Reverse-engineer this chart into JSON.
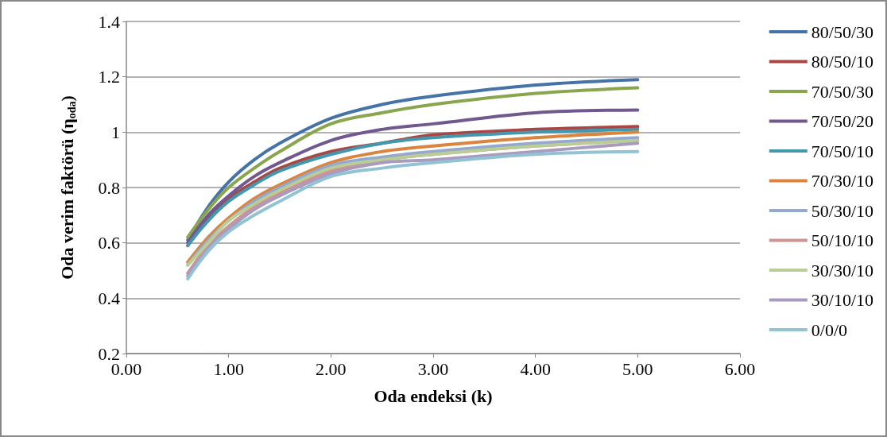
{
  "chart_data": {
    "type": "line",
    "xlabel": "Oda endeksi (k)",
    "ylabel": "Oda verim faktörü (η$_{oda}$)",
    "x": [
      0.6,
      0.8,
      1,
      1.25,
      1.5,
      2,
      2.5,
      3,
      4,
      5
    ],
    "series": [
      {
        "name": "80/50/30",
        "color": "#4572a7",
        "values": [
          0.61,
          0.73,
          0.82,
          0.9,
          0.96,
          1.05,
          1.1,
          1.13,
          1.17,
          1.19
        ]
      },
      {
        "name": "80/50/10",
        "color": "#aa4643",
        "values": [
          0.59,
          0.69,
          0.76,
          0.82,
          0.87,
          0.93,
          0.96,
          0.99,
          1.01,
          1.02
        ]
      },
      {
        "name": "70/50/30",
        "color": "#89a54e",
        "values": [
          0.62,
          0.72,
          0.8,
          0.87,
          0.93,
          1.03,
          1.07,
          1.1,
          1.14,
          1.16
        ]
      },
      {
        "name": "70/50/20",
        "color": "#71588f",
        "values": [
          0.6,
          0.7,
          0.77,
          0.84,
          0.89,
          0.97,
          1.01,
          1.03,
          1.07,
          1.08
        ]
      },
      {
        "name": "70/50/10",
        "color": "#4198af",
        "values": [
          0.59,
          0.68,
          0.75,
          0.81,
          0.86,
          0.92,
          0.96,
          0.98,
          1.0,
          1.01
        ]
      },
      {
        "name": "70/30/10",
        "color": "#db843d",
        "values": [
          0.53,
          0.62,
          0.69,
          0.76,
          0.81,
          0.89,
          0.93,
          0.95,
          0.98,
          1.0
        ]
      },
      {
        "name": "50/30/10",
        "color": "#93a9cf",
        "values": [
          0.52,
          0.61,
          0.68,
          0.75,
          0.8,
          0.88,
          0.91,
          0.93,
          0.96,
          0.98
        ]
      },
      {
        "name": "50/10/10",
        "color": "#d19392",
        "values": [
          0.49,
          0.59,
          0.66,
          0.73,
          0.78,
          0.86,
          0.9,
          0.92,
          0.95,
          0.97
        ]
      },
      {
        "name": "30/30/10",
        "color": "#b9cd96",
        "values": [
          0.52,
          0.6,
          0.68,
          0.74,
          0.79,
          0.87,
          0.9,
          0.92,
          0.95,
          0.97
        ]
      },
      {
        "name": "30/10/10",
        "color": "#a99bbd",
        "values": [
          0.48,
          0.58,
          0.65,
          0.72,
          0.77,
          0.85,
          0.89,
          0.9,
          0.93,
          0.96
        ]
      },
      {
        "name": "0/0/0",
        "color": "#92c3d4",
        "values": [
          0.47,
          0.57,
          0.64,
          0.7,
          0.75,
          0.84,
          0.87,
          0.89,
          0.92,
          0.93
        ]
      }
    ],
    "xlim": [
      0,
      6
    ],
    "xticks": [
      {
        "value": 0,
        "label": "0.00"
      },
      {
        "value": 1,
        "label": "1.00"
      },
      {
        "value": 2,
        "label": "2.00"
      },
      {
        "value": 3,
        "label": "3.00"
      },
      {
        "value": 4,
        "label": "4.00"
      },
      {
        "value": 5,
        "label": "5.00"
      },
      {
        "value": 6,
        "label": "6.00"
      }
    ],
    "ylim": [
      0.2,
      1.4
    ],
    "yticks": [
      0.2,
      0.4,
      0.6,
      0.8,
      1,
      1.2,
      1.4
    ],
    "grid": "y",
    "legend": "right",
    "marker": "none",
    "line_style": "solid"
  }
}
